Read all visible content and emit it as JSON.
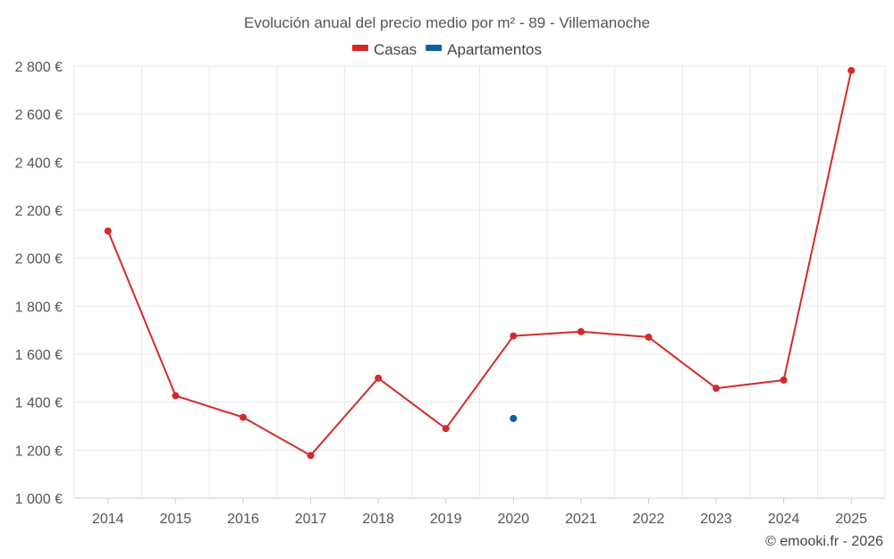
{
  "chart_data": {
    "type": "line",
    "title": "Evolución anual del precio medio por m² - 89 - Villemanoche",
    "xlabel": "",
    "ylabel": "",
    "categories": [
      "2014",
      "2015",
      "2016",
      "2017",
      "2018",
      "2019",
      "2020",
      "2021",
      "2022",
      "2023",
      "2024",
      "2025"
    ],
    "ylim": [
      1000,
      2800
    ],
    "yticks": [
      1000,
      1200,
      1400,
      1600,
      1800,
      2000,
      2200,
      2400,
      2600,
      2800
    ],
    "ytick_labels": [
      "1 000 €",
      "1 200 €",
      "1 400 €",
      "1 600 €",
      "1 800 €",
      "2 000 €",
      "2 200 €",
      "2 400 €",
      "2 600 €",
      "2 800 €"
    ],
    "legend_position": "top-center",
    "grid": true,
    "series": [
      {
        "name": "Casas",
        "color": "#d42a2a",
        "values": [
          2113,
          1427,
          1337,
          1178,
          1500,
          1290,
          1676,
          1694,
          1671,
          1458,
          1492,
          2782
        ]
      },
      {
        "name": "Apartamentos",
        "color": "#0e5fa0",
        "values": [
          null,
          null,
          null,
          null,
          null,
          null,
          1332,
          null,
          null,
          null,
          null,
          null
        ]
      }
    ]
  },
  "credit": "© emooki.fr - 2026"
}
